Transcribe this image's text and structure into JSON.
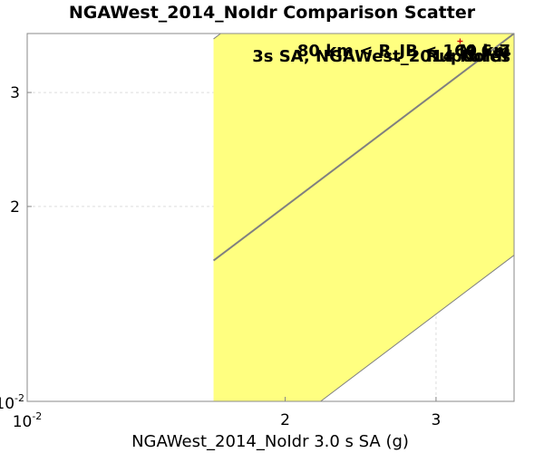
{
  "chart_data": {
    "type": "scatter",
    "title": "NGAWest_2014_NoIdr Comparison Scatter",
    "xlabel": "NGAWest_2014_NoIdr 3.0 s SA (g)",
    "ylabel": "",
    "x_scale": "log",
    "y_scale": "log",
    "xlim": [
      1.0,
      3.7
    ],
    "ylim": [
      1.0,
      3.7
    ],
    "x_ticks": [
      {
        "value": 1.0,
        "base": "10",
        "exp": "-2"
      },
      {
        "value": 2.0,
        "label": "2"
      },
      {
        "value": 3.0,
        "label": "3"
      }
    ],
    "y_ticks": [
      {
        "value": 1.0,
        "base": "10",
        "exp": "-2"
      },
      {
        "value": 2.0,
        "label": "2"
      },
      {
        "value": 3.0,
        "label": "3"
      }
    ],
    "grid": true,
    "band": {
      "x_start": 1.65,
      "x_end": 3.7,
      "factor": 2.2,
      "color": "#ffff80"
    },
    "reference_line": {
      "type": "one_to_one",
      "x_start": 1.65,
      "x_end": 3.7,
      "color": "#808080"
    },
    "points": [
      {
        "x": 3.2,
        "y": 3.6,
        "color": "#cc0000"
      }
    ],
    "annotations": [
      "80 km < R_JB < 160 km",
      "3s SA, NGAWest_2014 NoIdr",
      "M 6-7",
      "Ruptures"
    ]
  }
}
